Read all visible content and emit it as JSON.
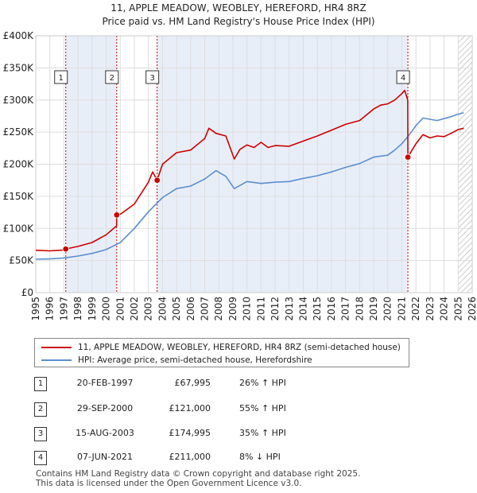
{
  "title_line1": "11, APPLE MEADOW, WEOBLEY, HEREFORD, HR4 8RZ",
  "title_line2": "Price paid vs. HM Land Registry's House Price Index (HPI)",
  "legend": {
    "property": "11, APPLE MEADOW, WEOBLEY, HEREFORD, HR4 8RZ (semi-detached house)",
    "hpi": "HPI: Average price, semi-detached house, Herefordshire"
  },
  "transactions": [
    {
      "num": "1",
      "date": "20-FEB-1997",
      "price": "£67,995",
      "hpi": "26% ↑ HPI"
    },
    {
      "num": "2",
      "date": "29-SEP-2000",
      "price": "£121,000",
      "hpi": "55% ↑ HPI"
    },
    {
      "num": "3",
      "date": "15-AUG-2003",
      "price": "£174,995",
      "hpi": "35% ↑ HPI"
    },
    {
      "num": "4",
      "date": "07-JUN-2021",
      "price": "£211,000",
      "hpi": "8% ↓ HPI"
    }
  ],
  "footer_line1": "Contains HM Land Registry data © Crown copyright and database right 2025.",
  "footer_line2": "This data is licensed under the Open Government Licence v3.0.",
  "colors": {
    "property": "#cc0000",
    "hpi": "#5b8fd0",
    "shade": "#e8eef8",
    "grid": "#dddddd"
  },
  "chart_data": {
    "type": "line",
    "title": "11, APPLE MEADOW, WEOBLEY, HEREFORD, HR4 8RZ — Price paid vs. HM Land Registry's House Price Index (HPI)",
    "xlabel": "",
    "ylabel": "",
    "xlim": [
      1995,
      2026
    ],
    "ylim": [
      0,
      400000
    ],
    "x_ticks": [
      1995,
      1996,
      1997,
      1998,
      1999,
      2000,
      2001,
      2002,
      2003,
      2004,
      2005,
      2006,
      2007,
      2008,
      2009,
      2010,
      2011,
      2012,
      2013,
      2014,
      2015,
      2016,
      2017,
      2018,
      2019,
      2020,
      2021,
      2022,
      2023,
      2024,
      2025,
      2026
    ],
    "y_ticks": [
      {
        "value": 0,
        "label": "£0"
      },
      {
        "value": 50000,
        "label": "£50K"
      },
      {
        "value": 100000,
        "label": "£100K"
      },
      {
        "value": 150000,
        "label": "£150K"
      },
      {
        "value": 200000,
        "label": "£200K"
      },
      {
        "value": 250000,
        "label": "£250K"
      },
      {
        "value": 300000,
        "label": "£300K"
      },
      {
        "value": 350000,
        "label": "£350K"
      },
      {
        "value": 400000,
        "label": "£400K"
      }
    ],
    "shaded_spans": [
      [
        1997.13,
        2000.75
      ],
      [
        2003.62,
        2021.43
      ]
    ],
    "hatched_from": 2025.0,
    "sales": [
      {
        "label": "1",
        "x": 1997.13,
        "y": 67995
      },
      {
        "label": "2",
        "x": 2000.75,
        "y": 121000
      },
      {
        "label": "3",
        "x": 2003.62,
        "y": 174995
      },
      {
        "label": "4",
        "x": 2021.43,
        "y": 211000
      }
    ],
    "series": [
      {
        "name": "11, APPLE MEADOW, WEOBLEY, HEREFORD, HR4 8RZ (semi-detached house)",
        "x": [
          1995,
          1996,
          1997.1,
          1997.13,
          1998,
          1999,
          2000,
          2000.74,
          2000.75,
          2001,
          2002,
          2003,
          2003.3,
          2003.62,
          2004,
          2005,
          2006,
          2007,
          2007.3,
          2007.8,
          2008.5,
          2009.1,
          2009.5,
          2010,
          2010.5,
          2011,
          2011.5,
          2012,
          2013,
          2014,
          2015,
          2016,
          2017,
          2018,
          2019,
          2019.5,
          2020,
          2020.5,
          2021,
          2021.2,
          2021.42,
          2021.43,
          2022,
          2022.5,
          2023,
          2023.5,
          2024,
          2024.5,
          2025,
          2025.4
        ],
        "values": [
          66000,
          65000,
          66500,
          67995,
          72000,
          78000,
          90000,
          104000,
          121000,
          122000,
          138000,
          172000,
          188000,
          174995,
          200000,
          218000,
          222000,
          240000,
          256000,
          248000,
          244000,
          208000,
          223000,
          230000,
          226000,
          234000,
          226000,
          229000,
          228000,
          236000,
          244000,
          253000,
          262000,
          268000,
          286000,
          292000,
          294000,
          300000,
          310000,
          315000,
          300000,
          211000,
          232000,
          246000,
          241000,
          244000,
          243000,
          248000,
          254000,
          256000
        ]
      },
      {
        "name": "HPI: Average price, semi-detached house, Herefordshire",
        "x": [
          1995,
          1996,
          1997,
          1998,
          1999,
          2000,
          2001,
          2002,
          2003,
          2004,
          2005,
          2006,
          2007,
          2007.8,
          2008.5,
          2009.1,
          2010,
          2011,
          2012,
          2013,
          2014,
          2015,
          2016,
          2017,
          2018,
          2019,
          2020,
          2020.5,
          2021,
          2021.5,
          2022,
          2022.5,
          2023,
          2023.5,
          2024,
          2024.5,
          2025,
          2025.4
        ],
        "values": [
          52000,
          52500,
          54000,
          57000,
          61000,
          67000,
          78000,
          100000,
          126000,
          148000,
          162000,
          166000,
          177000,
          190000,
          181000,
          162000,
          173000,
          170000,
          172000,
          173000,
          178000,
          182000,
          188000,
          195000,
          201000,
          211000,
          214000,
          222000,
          232000,
          245000,
          260000,
          272000,
          270000,
          268000,
          271000,
          274000,
          278000,
          280000
        ]
      }
    ]
  }
}
